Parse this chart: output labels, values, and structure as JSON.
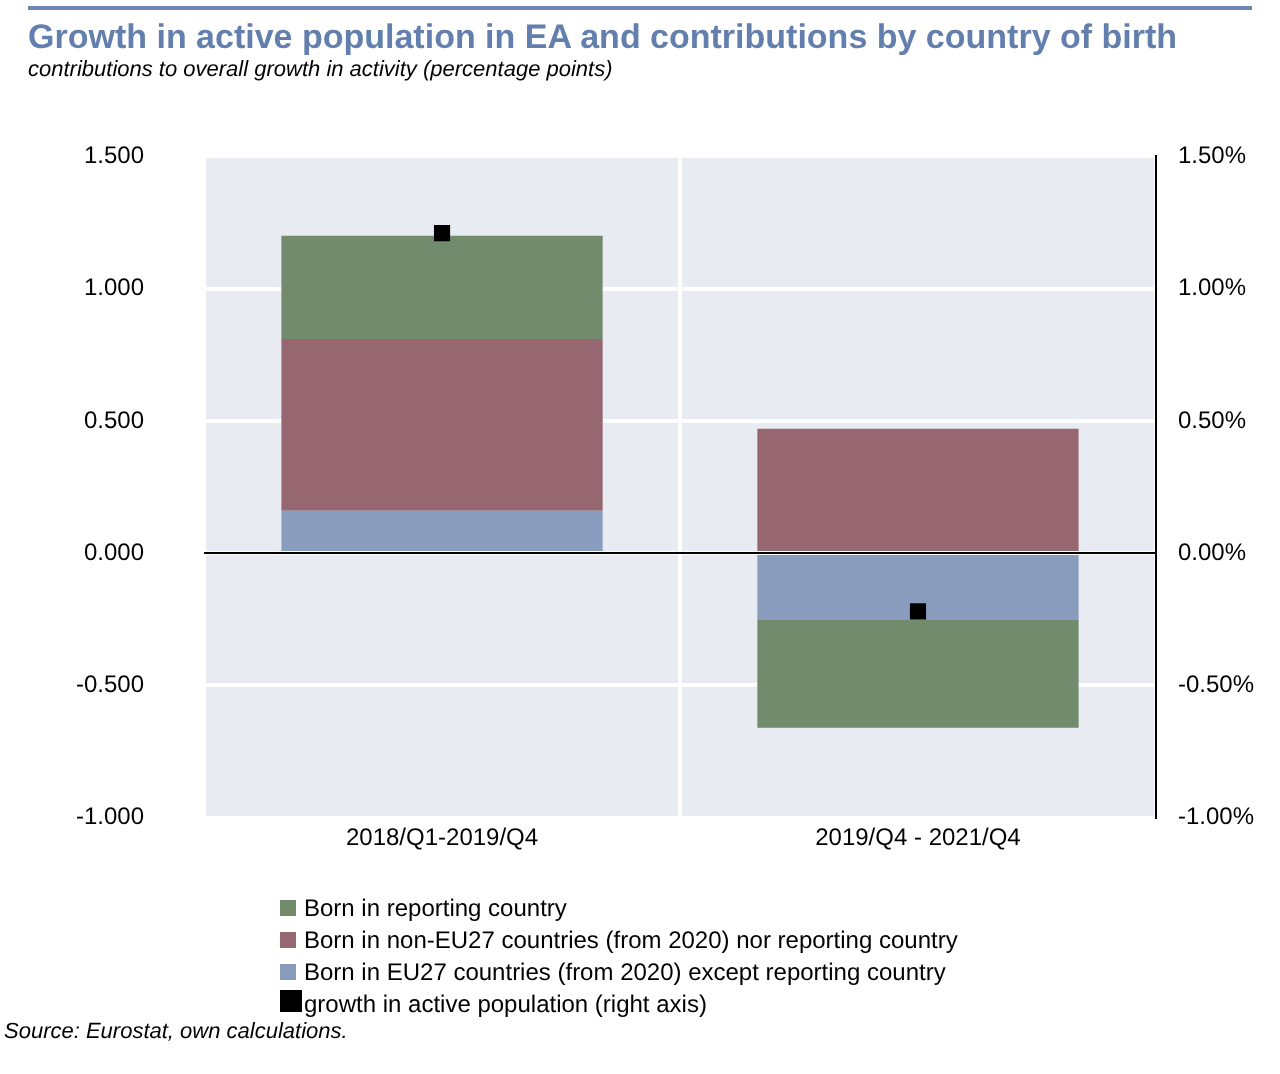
{
  "chart_data": {
    "type": "bar",
    "title": "Growth in active population in EA and contributions by country of birth",
    "subtitle": "contributions to overall growth in activity (percentage points)",
    "categories": [
      "2018/Q1-2019/Q4",
      "2019/Q4 - 2021/Q4"
    ],
    "stacked": true,
    "series": [
      {
        "name": "Born in EU27 countries (from 2020) except reporting country",
        "color": "#899cbe",
        "values": [
          0.16,
          -0.25
        ]
      },
      {
        "name": "Born in non-EU27 countries (from 2020) nor reporting country",
        "color": "#966770",
        "values": [
          0.65,
          0.47
        ]
      },
      {
        "name": "Born in reporting country",
        "color": "#718b6c",
        "values": [
          0.39,
          -0.41
        ]
      },
      {
        "name": "growth in active population (right axis)",
        "type": "scatter",
        "axis": "y2",
        "color": "#000000",
        "values": [
          1.21,
          -0.22
        ]
      }
    ],
    "ylim": [
      -1,
      1.5
    ],
    "yticks": [
      {
        "value": -1,
        "label": "-1.000"
      },
      {
        "value": -0.5,
        "label": "-0.500"
      },
      {
        "value": 0,
        "label": "0.000"
      },
      {
        "value": 0.5,
        "label": "0.500"
      },
      {
        "value": 1,
        "label": "1.000"
      },
      {
        "value": 1.5,
        "label": "1.500"
      }
    ],
    "y2lim": [
      -1,
      1.5
    ],
    "y2ticks": [
      {
        "value": -1,
        "label": "-1.00%"
      },
      {
        "value": -0.5,
        "label": "-0.50%"
      },
      {
        "value": 0,
        "label": "0.00%"
      },
      {
        "value": 0.5,
        "label": "0.50%"
      },
      {
        "value": 1,
        "label": "1.00%"
      },
      {
        "value": 1.5,
        "label": "1.50%"
      }
    ],
    "ref_lines": [
      {
        "axis": "y",
        "value": 0,
        "color": "#000000"
      }
    ],
    "grid": true,
    "legend": "bottom",
    "marker": "square",
    "annotations": [
      "Source: Eurostat, own calculations."
    ]
  }
}
